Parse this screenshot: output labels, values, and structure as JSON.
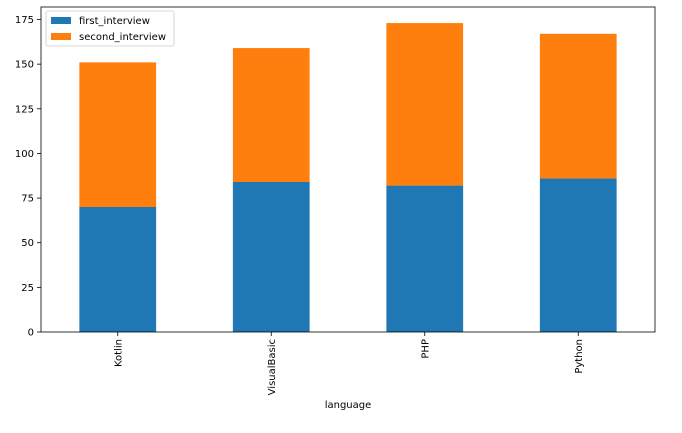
{
  "chart_data": {
    "type": "bar",
    "stacked": true,
    "categories": [
      "Kotlin",
      "VisualBasic",
      "PHP",
      "Python"
    ],
    "series": [
      {
        "name": "first_interview",
        "values": [
          70,
          84,
          82,
          86
        ],
        "color": "#1f77b4"
      },
      {
        "name": "second_interview",
        "values": [
          81,
          75,
          91,
          81
        ],
        "color": "#ff7f0e"
      }
    ],
    "xlabel": "language",
    "ylabel": "",
    "title": "",
    "ylim": [
      0,
      182
    ],
    "yticks": [
      0,
      25,
      50,
      75,
      100,
      125,
      150,
      175
    ],
    "legend_position": "upper-left",
    "grid": false
  }
}
